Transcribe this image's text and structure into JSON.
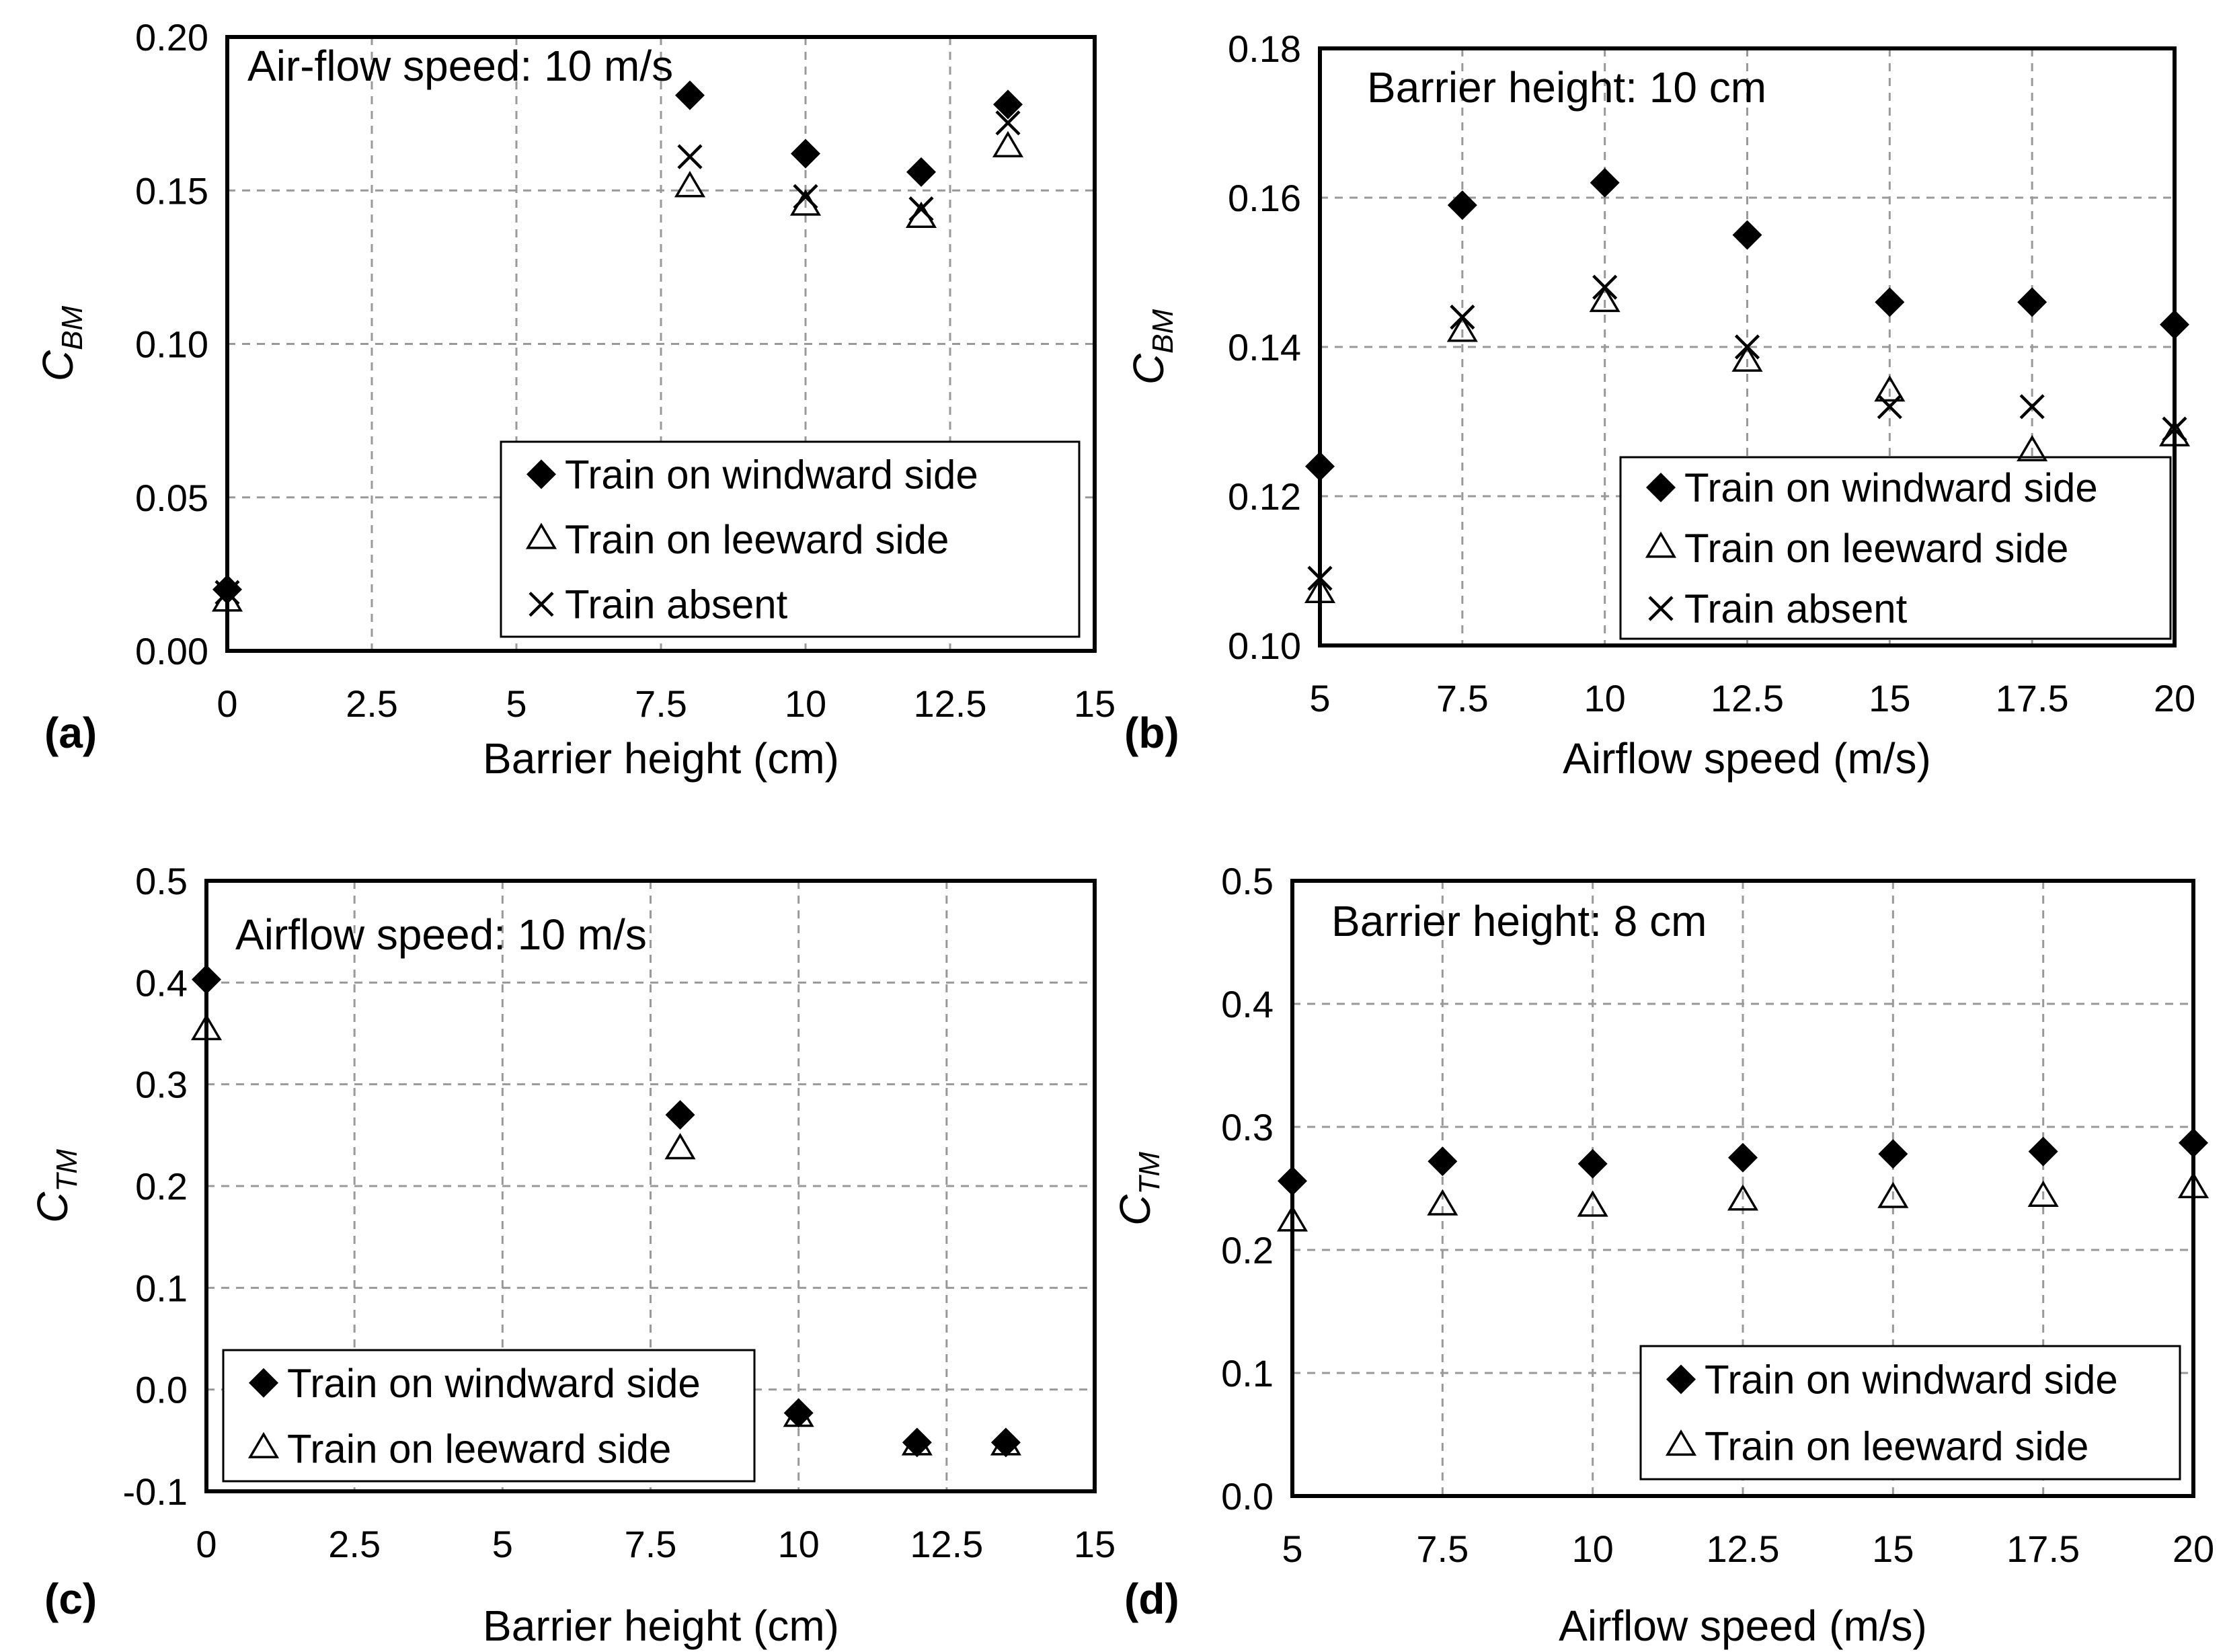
{
  "chart_data": [
    {
      "id": "a",
      "type": "scatter",
      "panel_label": "(a)",
      "annotation": "Air-flow speed: 10 m/s",
      "xlabel": "Barrier height (cm)",
      "ylabel": {
        "main": "C",
        "sub": "BM"
      },
      "xlim": [
        0,
        15
      ],
      "ylim": [
        0,
        0.2
      ],
      "x_ticks": [
        "0",
        "2.5",
        "5",
        "7.5",
        "10",
        "12.5",
        "15"
      ],
      "x_tick_values": [
        0,
        2.5,
        5,
        7.5,
        10,
        12.5,
        15
      ],
      "y_ticks": [
        "0.00",
        "0.05",
        "0.10",
        "0.15",
        "0.20"
      ],
      "y_tick_values": [
        0,
        0.05,
        0.1,
        0.15,
        0.2
      ],
      "grid": true,
      "legend_position": "bottom-right",
      "series": [
        {
          "name": "Train on windward side",
          "marker": "diamond",
          "x": [
            0,
            8,
            10,
            12,
            13.5
          ],
          "y": [
            0.02,
            0.181,
            0.162,
            0.156,
            0.178
          ]
        },
        {
          "name": "Train on leeward side",
          "marker": "triangle",
          "x": [
            0,
            8,
            10,
            12,
            13.5
          ],
          "y": [
            0.016,
            0.151,
            0.145,
            0.141,
            0.164
          ]
        },
        {
          "name": "Train absent",
          "marker": "cross",
          "x": [
            0,
            8,
            10,
            12,
            13.5
          ],
          "y": [
            0.019,
            0.161,
            0.148,
            0.144,
            0.172
          ]
        }
      ]
    },
    {
      "id": "b",
      "type": "scatter",
      "panel_label": "(b)",
      "annotation": "Barrier height: 10 cm",
      "xlabel": "Airflow speed (m/s)",
      "ylabel": {
        "main": "C",
        "sub": "BM"
      },
      "xlim": [
        5,
        20
      ],
      "ylim": [
        0.1,
        0.18
      ],
      "x_ticks": [
        "5",
        "7.5",
        "10",
        "12.5",
        "15",
        "17.5",
        "20"
      ],
      "x_tick_values": [
        5,
        7.5,
        10,
        12.5,
        15,
        17.5,
        20
      ],
      "y_ticks": [
        "0.10",
        "0.12",
        "0.14",
        "0.16",
        "0.18"
      ],
      "y_tick_values": [
        0.1,
        0.12,
        0.14,
        0.16,
        0.18
      ],
      "grid": true,
      "legend_position": "bottom-right",
      "series": [
        {
          "name": "Train on windward side",
          "marker": "diamond",
          "x": [
            5,
            7.5,
            10,
            12.5,
            15,
            17.5,
            20
          ],
          "y": [
            0.124,
            0.159,
            0.162,
            0.155,
            0.146,
            0.146,
            0.143
          ]
        },
        {
          "name": "Train on leeward side",
          "marker": "triangle",
          "x": [
            5,
            7.5,
            10,
            12.5,
            15,
            17.5,
            20
          ],
          "y": [
            0.107,
            0.142,
            0.146,
            0.138,
            0.134,
            0.126,
            0.128
          ]
        },
        {
          "name": "Train absent",
          "marker": "cross",
          "x": [
            5,
            7.5,
            10,
            12.5,
            15,
            17.5,
            20
          ],
          "y": [
            0.109,
            0.144,
            0.148,
            0.14,
            0.132,
            0.132,
            0.129
          ]
        }
      ]
    },
    {
      "id": "c",
      "type": "scatter",
      "panel_label": "(c)",
      "annotation": "Airflow speed: 10 m/s",
      "xlabel": "Barrier height (cm)",
      "ylabel": {
        "main": "C",
        "sub": "TM"
      },
      "xlim": [
        0,
        15
      ],
      "ylim": [
        -0.1,
        0.5
      ],
      "x_ticks": [
        "0",
        "2.5",
        "5",
        "7.5",
        "10",
        "12.5",
        "15"
      ],
      "x_tick_values": [
        0,
        2.5,
        5,
        7.5,
        10,
        12.5,
        15
      ],
      "y_ticks": [
        "-0.1",
        "0.0",
        "0.1",
        "0.2",
        "0.3",
        "0.4",
        "0.5"
      ],
      "y_tick_values": [
        -0.1,
        0,
        0.1,
        0.2,
        0.3,
        0.4,
        0.5
      ],
      "grid": true,
      "legend_position": "bottom-left",
      "series": [
        {
          "name": "Train on windward side",
          "marker": "diamond",
          "x": [
            0,
            8,
            10,
            12,
            13.5
          ],
          "y": [
            0.403,
            0.27,
            -0.023,
            -0.052,
            -0.052
          ]
        },
        {
          "name": "Train on leeward side",
          "marker": "triangle",
          "x": [
            0,
            8,
            10,
            12,
            13.5
          ],
          "y": [
            0.353,
            0.236,
            -0.027,
            -0.055,
            -0.055
          ]
        }
      ]
    },
    {
      "id": "d",
      "type": "scatter",
      "panel_label": "(d)",
      "annotation": "Barrier height: 8 cm",
      "xlabel": "Airflow speed (m/s)",
      "ylabel": {
        "main": "C",
        "sub": "TM"
      },
      "xlim": [
        5,
        20
      ],
      "ylim": [
        0,
        0.5
      ],
      "x_ticks": [
        "5",
        "7.5",
        "10",
        "12.5",
        "15",
        "17.5",
        "20"
      ],
      "x_tick_values": [
        5,
        7.5,
        10,
        12.5,
        15,
        17.5,
        20
      ],
      "y_ticks": [
        "0.0",
        "0.1",
        "0.2",
        "0.3",
        "0.4",
        "0.5"
      ],
      "y_tick_values": [
        0,
        0.1,
        0.2,
        0.3,
        0.4,
        0.5
      ],
      "grid": true,
      "legend_position": "bottom-right",
      "series": [
        {
          "name": "Train on windward side",
          "marker": "diamond",
          "x": [
            5,
            7.5,
            10,
            12.5,
            15,
            17.5,
            20
          ],
          "y": [
            0.256,
            0.272,
            0.27,
            0.275,
            0.278,
            0.28,
            0.287
          ]
        },
        {
          "name": "Train on leeward side",
          "marker": "triangle",
          "x": [
            5,
            7.5,
            10,
            12.5,
            15,
            17.5,
            20
          ],
          "y": [
            0.223,
            0.236,
            0.235,
            0.24,
            0.242,
            0.243,
            0.25
          ]
        }
      ]
    }
  ]
}
